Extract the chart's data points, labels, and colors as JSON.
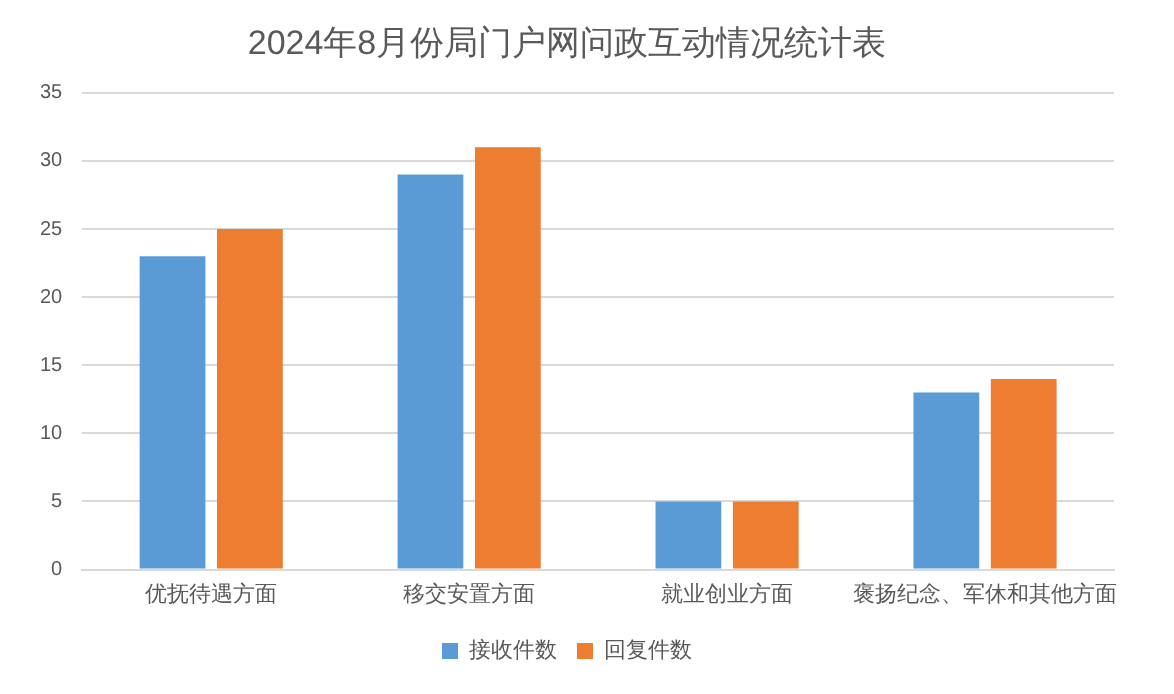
{
  "chart_data": {
    "type": "bar",
    "title": "2024年8月份局门户网问政互动情况统计表",
    "categories": [
      "优抚待遇方面",
      "移交安置方面",
      "就业创业方面",
      "褒扬纪念、军休和其他方面"
    ],
    "series": [
      {
        "name": "接收件数",
        "color": "#5b9bd5",
        "values": [
          23,
          29,
          5,
          13
        ]
      },
      {
        "name": "回复件数",
        "color": "#ed7d31",
        "values": [
          25,
          31,
          5,
          14
        ]
      }
    ],
    "ylim": [
      0,
      35
    ],
    "yticks": [
      0,
      5,
      10,
      15,
      20,
      25,
      30,
      35
    ],
    "grid": "y",
    "legend": "bottom"
  }
}
